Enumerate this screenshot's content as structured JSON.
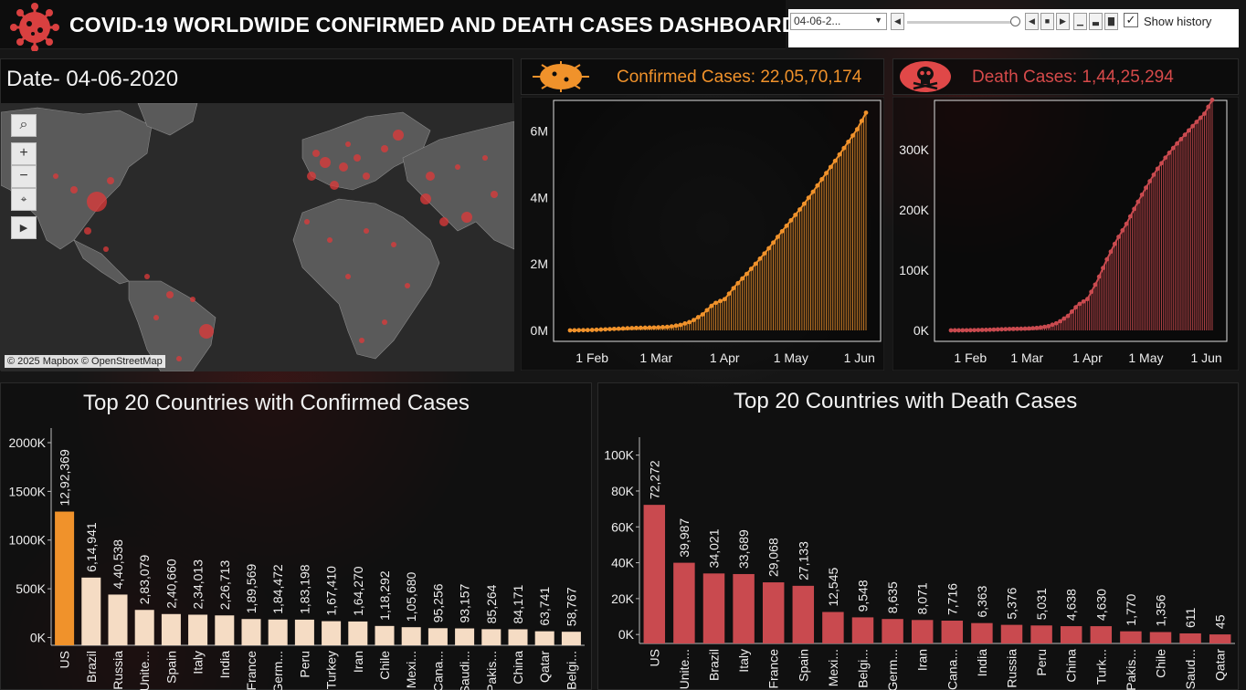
{
  "header": {
    "title": "COVID-19 WORLDWIDE CONFIRMED AND DEATH CASES DASHBOARD"
  },
  "controls": {
    "date_value": "04-06-2...",
    "show_history_label": "Show history",
    "show_history_checked": true
  },
  "map": {
    "date_label": "Date- 04-06-2020",
    "attribution": "© 2025 Mapbox © OpenStreetMap"
  },
  "kpi": {
    "confirmed_label": "Confirmed Cases: 22,05,70,174",
    "death_label": "Death Cases: 1,44,25,294",
    "confirmed_color": "#f0922b",
    "death_color": "#d64a4a"
  },
  "colors": {
    "confirmed_bar": "#f0922b",
    "confirmed_bar_light": "#f5dcc4",
    "death_bar": "#c94a4f"
  },
  "chart_data": [
    {
      "id": "confirmed-timeline",
      "type": "line",
      "x_tick_labels": [
        "1 Feb",
        "1 Mar",
        "1 Apr",
        "1 May",
        "1 Jun"
      ],
      "y_tick_labels": [
        "0M",
        "2M",
        "4M",
        "6M"
      ],
      "ylim": [
        0,
        6700000
      ],
      "x_range": [
        "22 Jan",
        "4 Jun"
      ],
      "x_days_range": [
        0,
        134
      ],
      "x_ticks_days": [
        10,
        39,
        70,
        100,
        131
      ],
      "y_ticks": [
        0,
        2000000,
        4000000,
        6000000
      ],
      "points": [
        [
          0,
          555
        ],
        [
          10,
          12000
        ],
        [
          20,
          45000
        ],
        [
          30,
          75000
        ],
        [
          39,
          88000
        ],
        [
          45,
          110000
        ],
        [
          50,
          165000
        ],
        [
          55,
          270000
        ],
        [
          60,
          480000
        ],
        [
          65,
          800000
        ],
        [
          70,
          940000
        ],
        [
          75,
          1350000
        ],
        [
          80,
          1700000
        ],
        [
          85,
          2080000
        ],
        [
          90,
          2470000
        ],
        [
          95,
          2900000
        ],
        [
          100,
          3310000
        ],
        [
          105,
          3720000
        ],
        [
          110,
          4170000
        ],
        [
          115,
          4640000
        ],
        [
          120,
          5100000
        ],
        [
          125,
          5580000
        ],
        [
          130,
          6050000
        ],
        [
          134,
          6550000
        ]
      ]
    },
    {
      "id": "death-timeline",
      "type": "line",
      "x_tick_labels": [
        "1 Feb",
        "1 Mar",
        "1 Apr",
        "1 May",
        "1 Jun"
      ],
      "y_tick_labels": [
        "0K",
        "100K",
        "200K",
        "300K"
      ],
      "ylim": [
        0,
        370000
      ],
      "x_range": [
        "22 Jan",
        "4 Jun"
      ],
      "x_days_range": [
        0,
        134
      ],
      "x_ticks_days": [
        10,
        39,
        70,
        100,
        131
      ],
      "y_ticks": [
        0,
        100000,
        200000,
        300000
      ],
      "points": [
        [
          0,
          17
        ],
        [
          10,
          260
        ],
        [
          20,
          1100
        ],
        [
          30,
          2300
        ],
        [
          39,
          3000
        ],
        [
          45,
          4300
        ],
        [
          50,
          7000
        ],
        [
          55,
          13000
        ],
        [
          60,
          24000
        ],
        [
          65,
          42000
        ],
        [
          70,
          52000
        ],
        [
          75,
          82000
        ],
        [
          80,
          118000
        ],
        [
          85,
          150000
        ],
        [
          90,
          177000
        ],
        [
          95,
          208000
        ],
        [
          100,
          237000
        ],
        [
          105,
          264000
        ],
        [
          110,
          287000
        ],
        [
          115,
          307000
        ],
        [
          120,
          325000
        ],
        [
          125,
          343000
        ],
        [
          130,
          360000
        ],
        [
          134,
          383000
        ]
      ]
    },
    {
      "id": "top20-confirmed",
      "type": "bar",
      "title": "Top 20 Countries with Confirmed Cases",
      "y_tick_labels": [
        "0K",
        "500K",
        "1000K",
        "1500K",
        "2000K"
      ],
      "y_ticks": [
        0,
        500000,
        1000000,
        1500000,
        2000000
      ],
      "ylim": [
        -80000,
        2150000
      ],
      "categories": [
        "US",
        "Brazil",
        "Russia",
        "Unite...",
        "Spain",
        "Italy",
        "India",
        "France",
        "Germ...",
        "Peru",
        "Turkey",
        "Iran",
        "Chile",
        "Mexi...",
        "Cana...",
        "Saudi...",
        "Pakis...",
        "China",
        "Qatar",
        "Belgi..."
      ],
      "values": [
        1292369,
        614941,
        440538,
        283079,
        240660,
        234013,
        226713,
        189569,
        184472,
        183198,
        167410,
        164270,
        118292,
        105680,
        95256,
        93157,
        85264,
        84171,
        63741,
        58767
      ],
      "value_labels": [
        "12,92,369",
        "6,14,941",
        "4,40,538",
        "2,83,079",
        "2,40,660",
        "2,34,013",
        "2,26,713",
        "1,89,569",
        "1,84,472",
        "1,83,198",
        "1,67,410",
        "1,64,270",
        "1,18,292",
        "1,05,680",
        "95,256",
        "93,157",
        "85,264",
        "84,171",
        "63,741",
        "58,767"
      ]
    },
    {
      "id": "top20-death",
      "type": "bar",
      "title": "Top 20 Countries with Death Cases",
      "y_tick_labels": [
        "0K",
        "20K",
        "40K",
        "60K",
        "80K",
        "100K"
      ],
      "y_ticks": [
        0,
        20000,
        40000,
        60000,
        80000,
        100000
      ],
      "ylim": [
        -5000,
        110000
      ],
      "categories": [
        "US",
        "Unite...",
        "Brazil",
        "Italy",
        "France",
        "Spain",
        "Mexi...",
        "Belgi...",
        "Germ...",
        "Iran",
        "Cana...",
        "India",
        "Russia",
        "Peru",
        "China",
        "Turk...",
        "Pakis...",
        "Chile",
        "Saud...",
        "Qatar"
      ],
      "values": [
        72272,
        39987,
        34021,
        33689,
        29068,
        27133,
        12545,
        9548,
        8635,
        8071,
        7716,
        6363,
        5376,
        5031,
        4638,
        4630,
        1770,
        1356,
        611,
        45
      ],
      "value_labels": [
        "72,272",
        "39,987",
        "34,021",
        "33,689",
        "29,068",
        "27,133",
        "12,545",
        "9,548",
        "8,635",
        "8,071",
        "7,716",
        "6,363",
        "5,376",
        "5,031",
        "4,638",
        "4,630",
        "1,770",
        "1,356",
        "611",
        "45"
      ]
    }
  ]
}
